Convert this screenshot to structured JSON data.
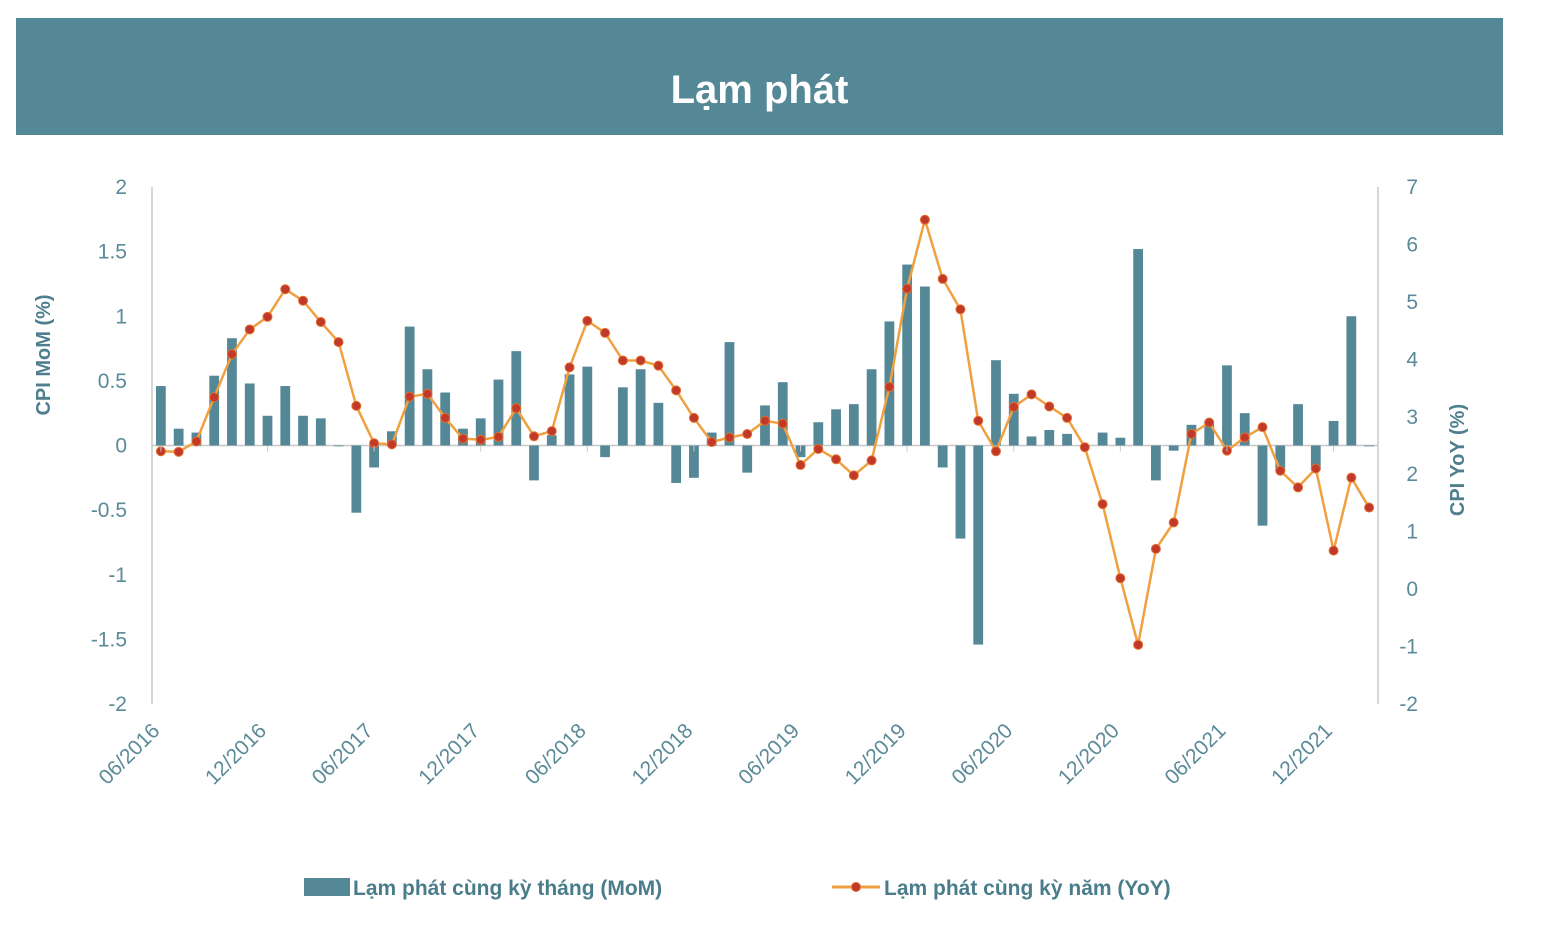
{
  "title": "Lạm phát",
  "colors": {
    "banner": "#558896",
    "bar": "#558896",
    "line": "#f0a040",
    "marker": "#c0392b"
  },
  "chart_data": {
    "type": "bar+line",
    "x": [
      "06/2016",
      "07/2016",
      "08/2016",
      "09/2016",
      "10/2016",
      "11/2016",
      "12/2016",
      "01/2017",
      "02/2017",
      "03/2017",
      "04/2017",
      "05/2017",
      "06/2017",
      "07/2017",
      "08/2017",
      "09/2017",
      "10/2017",
      "11/2017",
      "12/2017",
      "01/2018",
      "02/2018",
      "03/2018",
      "04/2018",
      "05/2018",
      "06/2018",
      "07/2018",
      "08/2018",
      "09/2018",
      "10/2018",
      "11/2018",
      "12/2018",
      "01/2019",
      "02/2019",
      "03/2019",
      "04/2019",
      "05/2019",
      "06/2019",
      "07/2019",
      "08/2019",
      "09/2019",
      "10/2019",
      "11/2019",
      "12/2019",
      "01/2020",
      "02/2020",
      "03/2020",
      "04/2020",
      "05/2020",
      "06/2020",
      "07/2020",
      "08/2020",
      "09/2020",
      "10/2020",
      "11/2020",
      "12/2020",
      "01/2021",
      "02/2021",
      "03/2021",
      "04/2021",
      "05/2021",
      "06/2021",
      "07/2021",
      "08/2021",
      "09/2021",
      "10/2021",
      "11/2021",
      "12/2021",
      "01/2022",
      "02/2022"
    ],
    "x_tick_labels": [
      "06/2016",
      "12/2016",
      "06/2017",
      "12/2017",
      "06/2018",
      "12/2018",
      "06/2019",
      "12/2019",
      "06/2020",
      "12/2020",
      "06/2021",
      "12/2021"
    ],
    "series": [
      {
        "name": "Lạm phát cùng kỳ tháng (MoM)",
        "type": "bar",
        "axis": "left",
        "values": [
          0.46,
          0.13,
          0.1,
          0.54,
          0.83,
          0.48,
          0.23,
          0.46,
          0.23,
          0.21,
          0.0,
          -0.52,
          -0.17,
          0.11,
          0.92,
          0.59,
          0.41,
          0.13,
          0.21,
          0.51,
          0.73,
          -0.27,
          0.08,
          0.55,
          0.61,
          -0.09,
          0.45,
          0.59,
          0.33,
          -0.29,
          -0.25,
          0.1,
          0.8,
          -0.21,
          0.31,
          0.49,
          -0.09,
          0.18,
          0.28,
          0.32,
          0.59,
          0.96,
          1.4,
          1.23,
          -0.17,
          -0.72,
          -1.54,
          0.66,
          0.4,
          0.07,
          0.12,
          0.09,
          -0.01,
          0.1,
          0.06,
          1.52,
          -0.27,
          -0.04,
          0.16,
          0.19,
          0.62,
          0.25,
          -0.62,
          -0.2,
          0.32,
          -0.18,
          0.19,
          1.0,
          0.0
        ]
      },
      {
        "name": "Lạm phát cùng kỳ năm (YoY)",
        "type": "line",
        "axis": "right",
        "values": [
          2.4,
          2.39,
          2.57,
          3.34,
          4.09,
          4.52,
          4.74,
          5.22,
          5.02,
          4.65,
          4.3,
          3.19,
          2.54,
          2.52,
          3.35,
          3.4,
          2.98,
          2.62,
          2.6,
          2.65,
          3.15,
          2.66,
          2.75,
          3.86,
          4.67,
          4.46,
          3.98,
          3.98,
          3.89,
          3.46,
          2.98,
          2.56,
          2.64,
          2.7,
          2.93,
          2.88,
          2.16,
          2.44,
          2.26,
          1.98,
          2.24,
          3.52,
          5.23,
          6.43,
          5.4,
          4.87,
          2.93,
          2.4,
          3.17,
          3.39,
          3.18,
          2.98,
          2.47,
          1.48,
          0.19,
          -0.97,
          0.7,
          1.16,
          2.7,
          2.9,
          2.41,
          2.64,
          2.82,
          2.06,
          1.77,
          2.1,
          0.67,
          1.94,
          1.42
        ]
      }
    ],
    "y_left": {
      "label": "CPI MoM (%)",
      "min": -2,
      "max": 2,
      "ticks": [
        "2",
        "1.5",
        "1",
        "0.5",
        "0",
        "-0.5",
        "-1",
        "-1.5",
        "-2"
      ]
    },
    "y_right": {
      "label": "CPI YoY (%)",
      "min": -2,
      "max": 7,
      "ticks": [
        "7",
        "6",
        "5",
        "4",
        "3",
        "2",
        "1",
        "0",
        "-1",
        "-2"
      ]
    },
    "legend": {
      "position": "bottom"
    }
  }
}
